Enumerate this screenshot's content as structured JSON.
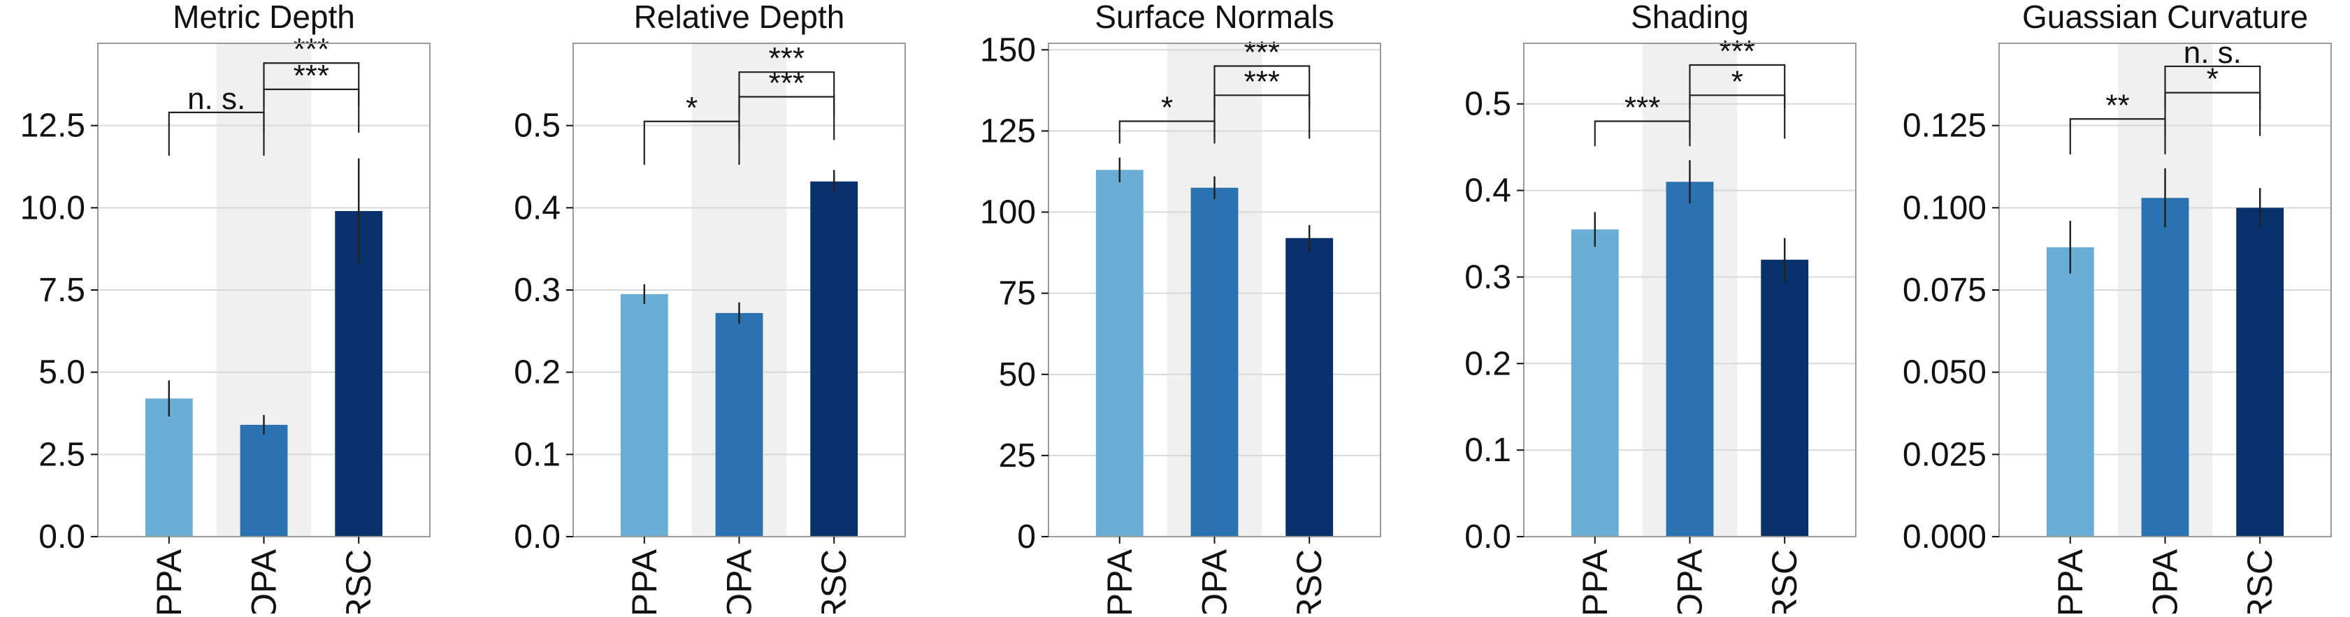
{
  "chart_data": [
    {
      "type": "bar",
      "title": "Metric Depth",
      "categories": [
        "PPA",
        "OPA",
        "RSC"
      ],
      "values": [
        4.2,
        3.4,
        9.9
      ],
      "errors": [
        0.55,
        0.3,
        1.6
      ],
      "ylim": [
        0,
        15.0
      ],
      "yticks": [
        0.0,
        2.5,
        5.0,
        7.5,
        10.0,
        12.5
      ],
      "ytick_labels": [
        "0.0",
        "2.5",
        "5.0",
        "7.5",
        "10.0",
        "12.5"
      ],
      "brackets": [
        {
          "from": 0,
          "to": 1,
          "level": 12.9,
          "label": "n. s."
        },
        {
          "from": 1,
          "to": 2,
          "level": 13.6,
          "label": "***"
        },
        {
          "from": 1,
          "to": 2,
          "level": 14.4,
          "label": "***"
        }
      ]
    },
    {
      "type": "bar",
      "title": "Relative Depth",
      "categories": [
        "PPA",
        "OPA",
        "RSC"
      ],
      "values": [
        0.295,
        0.272,
        0.432
      ],
      "errors": [
        0.012,
        0.013,
        0.014
      ],
      "ylim": [
        0,
        0.6
      ],
      "yticks": [
        0.0,
        0.1,
        0.2,
        0.3,
        0.4,
        0.5
      ],
      "ytick_labels": [
        "0.0",
        "0.1",
        "0.2",
        "0.3",
        "0.4",
        "0.5"
      ],
      "brackets": [
        {
          "from": 0,
          "to": 1,
          "level": 0.505,
          "label": "*"
        },
        {
          "from": 1,
          "to": 2,
          "level": 0.535,
          "label": "***"
        },
        {
          "from": 1,
          "to": 2,
          "level": 0.565,
          "label": "***"
        }
      ]
    },
    {
      "type": "bar",
      "title": "Surface Normals",
      "categories": [
        "PPA",
        "OPA",
        "RSC"
      ],
      "values": [
        113.0,
        107.5,
        92.0
      ],
      "errors": [
        3.8,
        3.5,
        4.0
      ],
      "ylim": [
        0,
        152
      ],
      "yticks": [
        0,
        25,
        50,
        75,
        100,
        125,
        150
      ],
      "ytick_labels": [
        "0",
        "25",
        "50",
        "75",
        "100",
        "125",
        "150"
      ],
      "brackets": [
        {
          "from": 0,
          "to": 1,
          "level": 128,
          "label": "*"
        },
        {
          "from": 1,
          "to": 2,
          "level": 136,
          "label": "***"
        },
        {
          "from": 1,
          "to": 2,
          "level": 145,
          "label": "***"
        }
      ]
    },
    {
      "type": "bar",
      "title": "Shading",
      "categories": [
        "PPA",
        "OPA",
        "RSC"
      ],
      "values": [
        0.355,
        0.41,
        0.32
      ],
      "errors": [
        0.02,
        0.025,
        0.025
      ],
      "ylim": [
        0,
        0.57
      ],
      "yticks": [
        0.0,
        0.1,
        0.2,
        0.3,
        0.4,
        0.5
      ],
      "ytick_labels": [
        "0.0",
        "0.1",
        "0.2",
        "0.3",
        "0.4",
        "0.5"
      ],
      "brackets": [
        {
          "from": 0,
          "to": 1,
          "level": 0.48,
          "label": "***"
        },
        {
          "from": 1,
          "to": 2,
          "level": 0.51,
          "label": "*"
        },
        {
          "from": 1,
          "to": 2,
          "level": 0.545,
          "label": "***"
        }
      ]
    },
    {
      "type": "bar",
      "title": "Guassian Curvature",
      "categories": [
        "PPA",
        "OPA",
        "RSC"
      ],
      "values": [
        0.088,
        0.103,
        0.1
      ],
      "errors": [
        0.008,
        0.009,
        0.006
      ],
      "ylim": [
        0,
        0.15
      ],
      "yticks": [
        0.0,
        0.025,
        0.05,
        0.075,
        0.1,
        0.125
      ],
      "ytick_labels": [
        "0.000",
        "0.025",
        "0.050",
        "0.075",
        "0.100",
        "0.125"
      ],
      "brackets": [
        {
          "from": 0,
          "to": 1,
          "level": 0.127,
          "label": "**"
        },
        {
          "from": 1,
          "to": 2,
          "level": 0.135,
          "label": "*"
        },
        {
          "from": 1,
          "to": 2,
          "level": 0.143,
          "label": "n. s."
        }
      ]
    }
  ],
  "colors": {
    "bars": [
      "#6aaed6",
      "#2b72b1",
      "#08306b"
    ],
    "shade": "#f0f0f0",
    "grid": "#d9d9d9",
    "axis": "#9a9a9a",
    "ink": "#111111"
  }
}
